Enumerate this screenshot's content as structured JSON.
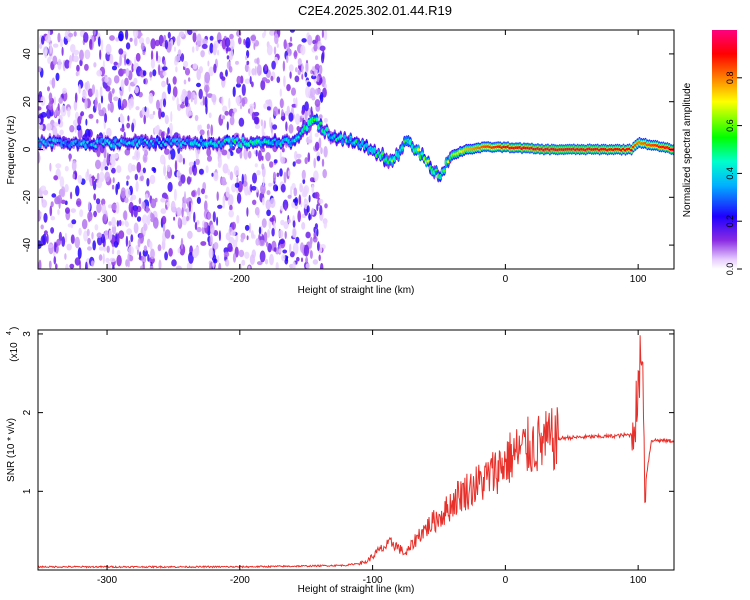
{
  "title": "C2E4.2025.302.01.44.R19",
  "chart_data": [
    {
      "type": "heatmap",
      "xlabel": "Height of straight line (km)",
      "ylabel": "Frequency (Hz)",
      "xlim": [
        -352,
        127
      ],
      "ylim": [
        -50,
        50
      ],
      "xticks": [
        -300,
        -200,
        -100,
        0,
        100
      ],
      "yticks": [
        -40,
        -20,
        0,
        20,
        40
      ],
      "colorbar": {
        "label": "Normalized spectral amplitude",
        "range": [
          0,
          1
        ],
        "ticks": [
          0.0,
          0.2,
          0.4,
          0.6,
          0.8
        ]
      },
      "noise_region_x": [
        -352,
        -135
      ],
      "ridge": [
        {
          "x": -352,
          "y": 3,
          "amp": 0.35
        },
        {
          "x": -300,
          "y": 2.5,
          "amp": 0.4
        },
        {
          "x": -250,
          "y": 3,
          "amp": 0.35
        },
        {
          "x": -200,
          "y": 3,
          "amp": 0.45
        },
        {
          "x": -160,
          "y": 3,
          "amp": 0.4
        },
        {
          "x": -145,
          "y": 13,
          "amp": 0.5
        },
        {
          "x": -130,
          "y": 5,
          "amp": 0.4
        },
        {
          "x": -110,
          "y": 3,
          "amp": 0.45
        },
        {
          "x": -95,
          "y": -2,
          "amp": 0.5
        },
        {
          "x": -85,
          "y": -6,
          "amp": 0.55
        },
        {
          "x": -75,
          "y": 4,
          "amp": 0.5
        },
        {
          "x": -65,
          "y": -1,
          "amp": 0.6
        },
        {
          "x": -55,
          "y": -8,
          "amp": 0.55
        },
        {
          "x": -48,
          "y": -11,
          "amp": 0.5
        },
        {
          "x": -42,
          "y": -3,
          "amp": 0.6
        },
        {
          "x": -30,
          "y": 0,
          "amp": 0.75
        },
        {
          "x": -15,
          "y": 1,
          "amp": 0.85
        },
        {
          "x": 0,
          "y": 1,
          "amp": 0.9
        },
        {
          "x": 30,
          "y": 0,
          "amp": 0.95
        },
        {
          "x": 60,
          "y": 0,
          "amp": 0.95
        },
        {
          "x": 95,
          "y": 0,
          "amp": 0.9
        },
        {
          "x": 100,
          "y": 3,
          "amp": 0.8
        },
        {
          "x": 127,
          "y": 0,
          "amp": 0.95
        }
      ]
    },
    {
      "type": "line",
      "xlabel": "Height of straight line (km)",
      "ylabel": "SNR (10 * v/v)",
      "yscale_label": "(x10",
      "yscale_exp": "4",
      "xlim": [
        -352,
        127
      ],
      "ylim": [
        0,
        3.05
      ],
      "xticks": [
        -300,
        -200,
        -100,
        0,
        100
      ],
      "yticks": [
        1,
        2,
        3
      ],
      "color": "#e8302a",
      "series": [
        {
          "x": [
            -352,
            -300,
            -250,
            -200,
            -150,
            -120,
            -105,
            -95,
            -85,
            -75,
            -65,
            -55,
            -45,
            -35,
            -25,
            -15,
            -5,
            5,
            15,
            25,
            35,
            45,
            60,
            80,
            95,
            100,
            103,
            105,
            110,
            127
          ],
          "y": [
            0.04,
            0.04,
            0.04,
            0.04,
            0.05,
            0.06,
            0.1,
            0.25,
            0.35,
            0.2,
            0.45,
            0.6,
            0.75,
            0.95,
            1.05,
            1.15,
            1.3,
            1.45,
            1.55,
            1.6,
            1.65,
            1.68,
            1.69,
            1.7,
            1.72,
            2.2,
            3.0,
            1.05,
            1.65,
            1.64
          ]
        }
      ]
    }
  ]
}
